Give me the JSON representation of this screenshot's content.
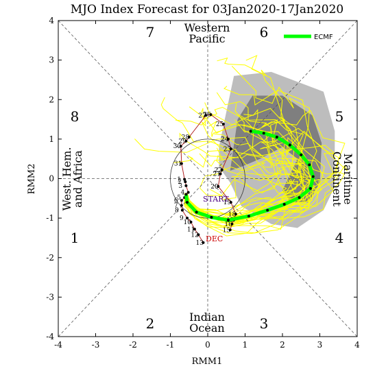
{
  "chart_data": {
    "type": "line",
    "title": "MJO Index Forecast for 03Jan2020-17Jan2020",
    "xlabel": "RMM1",
    "ylabel": "RMM2",
    "xlim": [
      -4,
      4
    ],
    "ylim": [
      -4,
      4
    ],
    "xticks": [
      "-4",
      "-3",
      "-2",
      "-1",
      "0",
      "1",
      "2",
      "3",
      "4"
    ],
    "yticks": [
      "-4",
      "-3",
      "-2",
      "-1",
      "0",
      "1",
      "2",
      "3",
      "4"
    ],
    "phase_labels": [
      "1",
      "2",
      "3",
      "4",
      "5",
      "6",
      "7",
      "8"
    ],
    "regions": {
      "top": [
        "Western",
        "Pacific"
      ],
      "bottom": [
        "Indian",
        "Ocean"
      ],
      "left": [
        "West. Hem.",
        "and Africa"
      ],
      "right": [
        "Maritime",
        "Continent"
      ]
    },
    "month_label": "DEC",
    "start_label": "START",
    "legend": {
      "position": "top-right",
      "entries": [
        "ECMF"
      ]
    },
    "colors": {
      "observed": "#b22222",
      "forecast_mean": "#00ff00",
      "members": "#ffff00",
      "spread_outer": "#bdbdbd",
      "spread_inner": "#7f7f7f",
      "dec_label": "#cc0000",
      "start_label": "#4b0082"
    },
    "observed": {
      "days": [
        "15",
        "16",
        "17",
        "18",
        "19",
        "20",
        "21",
        "22",
        "23",
        "24",
        "25",
        "26",
        "27",
        "28",
        "29",
        "30",
        "31",
        "1",
        "2",
        "3",
        "4",
        "5",
        "6",
        "7",
        "8",
        "9",
        "10",
        "11",
        "12",
        "13"
      ],
      "points": [
        [
          0.6,
          -1.3
        ],
        [
          0.65,
          -1.15
        ],
        [
          0.7,
          -1.05
        ],
        [
          0.75,
          -0.9
        ],
        [
          0.62,
          -0.6
        ],
        [
          0.28,
          -0.2
        ],
        [
          0.34,
          0.12
        ],
        [
          0.38,
          0.22
        ],
        [
          0.62,
          0.75
        ],
        [
          0.55,
          1.0
        ],
        [
          0.42,
          1.38
        ],
        [
          0.08,
          1.62
        ],
        [
          -0.05,
          1.6
        ],
        [
          -0.5,
          1.05
        ],
        [
          -0.58,
          0.95
        ],
        [
          -0.72,
          0.82
        ],
        [
          -0.7,
          0.38
        ],
        [
          -0.62,
          -0.02
        ],
        [
          -0.6,
          -0.08
        ],
        [
          -0.58,
          -0.18
        ],
        [
          -0.52,
          -0.35
        ],
        [
          -0.62,
          -0.48
        ],
        [
          -0.7,
          -0.55
        ],
        [
          -0.7,
          -0.68
        ],
        [
          -0.68,
          -0.8
        ],
        [
          -0.55,
          -1.0
        ],
        [
          -0.45,
          -1.1
        ],
        [
          -0.35,
          -1.28
        ],
        [
          -0.25,
          -1.42
        ],
        [
          -0.12,
          -1.62
        ]
      ]
    },
    "forecast_mean": {
      "points": [
        [
          -0.58,
          -0.4
        ],
        [
          -0.55,
          -0.6
        ],
        [
          -0.3,
          -0.85
        ],
        [
          0.1,
          -0.98
        ],
        [
          0.55,
          -1.05
        ],
        [
          1.1,
          -0.95
        ],
        [
          1.6,
          -0.8
        ],
        [
          2.05,
          -0.65
        ],
        [
          2.45,
          -0.48
        ],
        [
          2.75,
          -0.25
        ],
        [
          2.82,
          0.05
        ],
        [
          2.72,
          0.35
        ],
        [
          2.5,
          0.6
        ],
        [
          2.2,
          0.85
        ],
        [
          1.85,
          1.05
        ],
        [
          1.5,
          1.15
        ],
        [
          1.15,
          1.2
        ]
      ]
    }
  }
}
